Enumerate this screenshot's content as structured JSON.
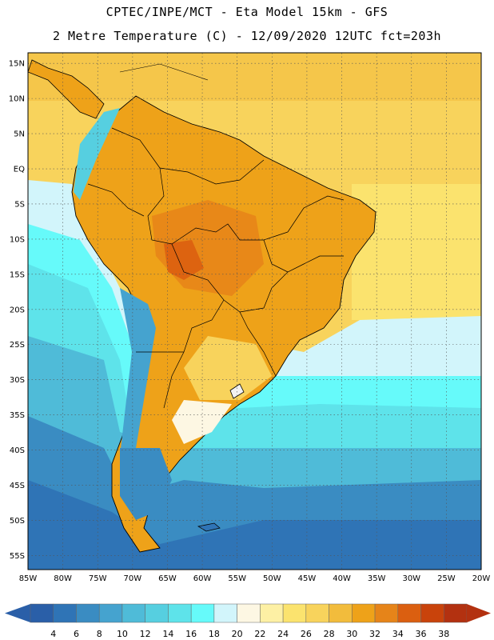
{
  "header": {
    "line1": "CPTEC/INPE/MCT -  Eta Model 15km - GFS",
    "line2": "2 Metre Temperature (C) - 12/09/2020 12UTC fct=203h"
  },
  "map": {
    "lat_labels": [
      "15N",
      "10N",
      "5N",
      "EQ",
      "5S",
      "10S",
      "15S",
      "20S",
      "25S",
      "30S",
      "35S",
      "40S",
      "45S",
      "50S",
      "55S"
    ],
    "lon_labels": [
      "85W",
      "80W",
      "75W",
      "70W",
      "65W",
      "60W",
      "55W",
      "50W",
      "45W",
      "40W",
      "35W",
      "30W",
      "25W",
      "20W"
    ],
    "lon_range": [
      -85,
      -20
    ],
    "lat_range": [
      -57,
      16.5
    ]
  },
  "colorbar": {
    "labels": [
      "4",
      "6",
      "8",
      "10",
      "12",
      "14",
      "16",
      "18",
      "20",
      "22",
      "24",
      "26",
      "28",
      "30",
      "32",
      "34",
      "36",
      "38"
    ],
    "colors": [
      "#2a5fa8",
      "#2f74b6",
      "#3a8cc2",
      "#45a3cf",
      "#4fbbd8",
      "#56cfe0",
      "#5ee3ea",
      "#66fafa",
      "#d2f5fb",
      "#fdf7e3",
      "#fdf0a4",
      "#fbe36e",
      "#f8d35c",
      "#f2bc3c",
      "#eea219",
      "#e68419",
      "#db5f10",
      "#c9430b",
      "#b33110"
    ],
    "under_color": "#2a5fa8",
    "over_color": "#b33110"
  }
}
